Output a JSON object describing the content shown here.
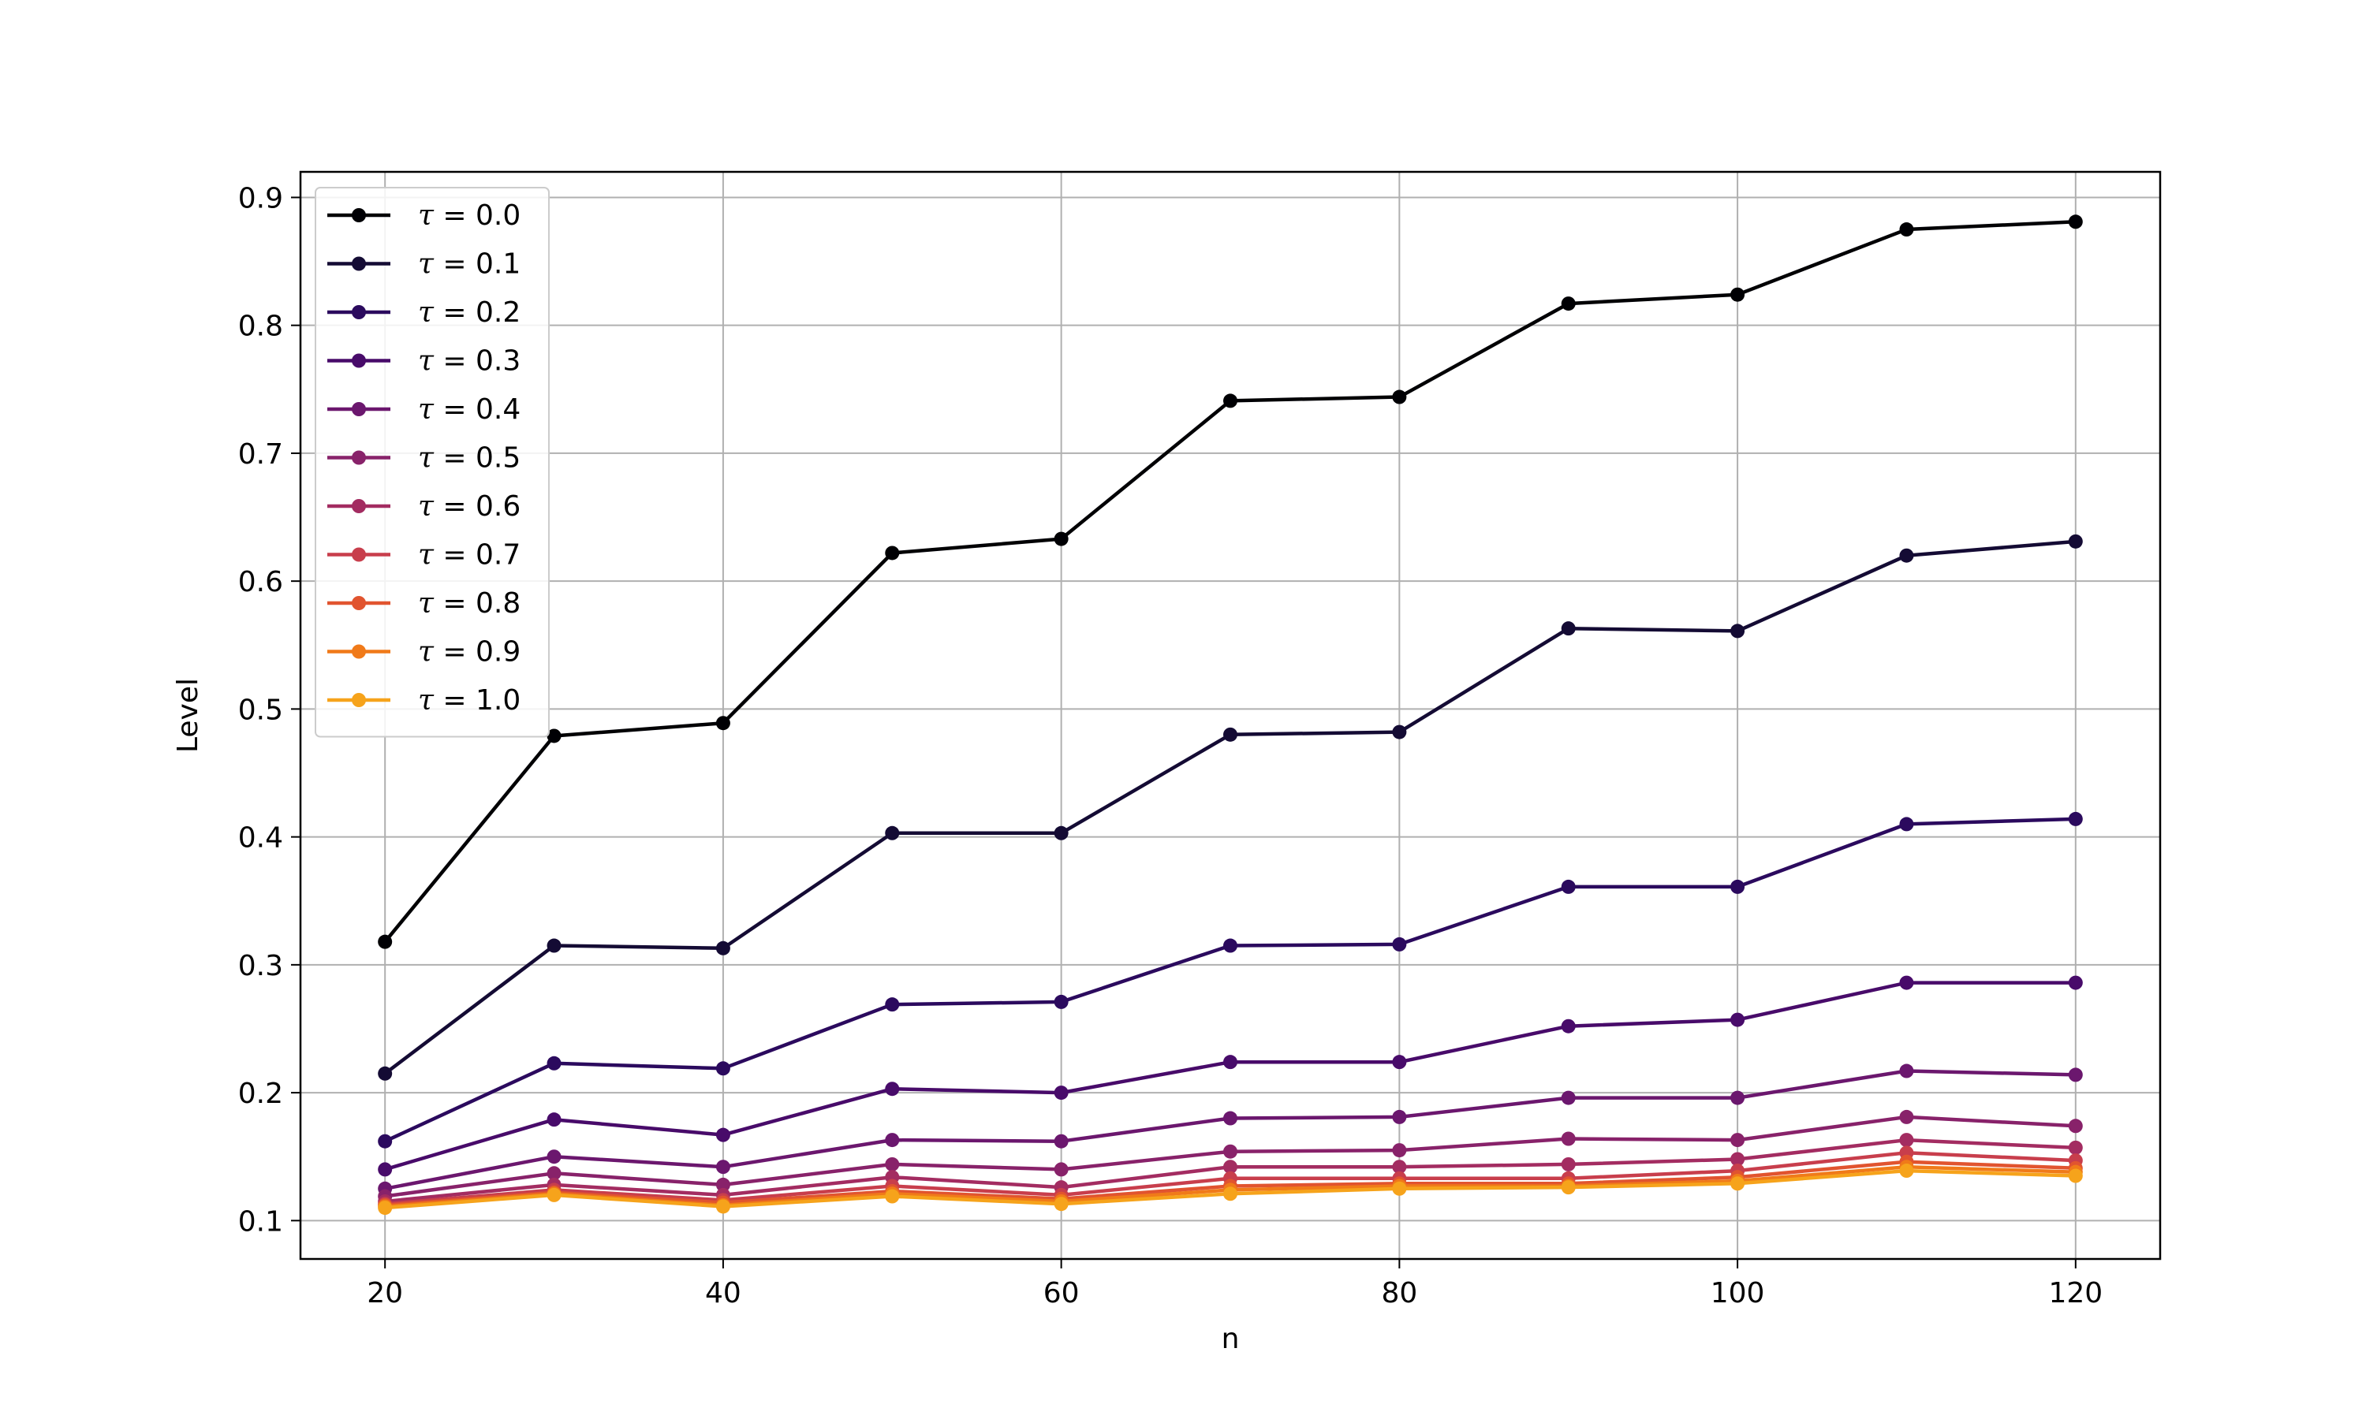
{
  "chart_data": {
    "type": "line",
    "title": "",
    "xlabel": "n",
    "ylabel": "Level",
    "xlim": [
      15,
      125
    ],
    "ylim": [
      0.07,
      0.92
    ],
    "xticks": [
      20,
      40,
      60,
      80,
      100,
      120
    ],
    "yticks": [
      0.1,
      0.2,
      0.3,
      0.4,
      0.5,
      0.6,
      0.7,
      0.8,
      0.9
    ],
    "xtick_labels": [
      "20",
      "40",
      "60",
      "80",
      "100",
      "120"
    ],
    "ytick_labels": [
      "0.1",
      "0.2",
      "0.3",
      "0.4",
      "0.5",
      "0.6",
      "0.7",
      "0.8",
      "0.9"
    ],
    "grid": true,
    "legend_position": "top-left",
    "x": [
      20,
      30,
      40,
      50,
      60,
      70,
      80,
      90,
      100,
      110,
      120
    ],
    "series": [
      {
        "name": "τ = 0.0",
        "name_symbol": "τ",
        "name_rest": " = 0.0",
        "color": "#000004",
        "values": [
          0.318,
          0.479,
          0.489,
          0.622,
          0.633,
          0.741,
          0.744,
          0.817,
          0.824,
          0.875,
          0.881
        ]
      },
      {
        "name": "τ = 0.1",
        "name_symbol": "τ",
        "name_rest": " = 0.1",
        "color": "#140b34",
        "values": [
          0.215,
          0.315,
          0.313,
          0.403,
          0.403,
          0.48,
          0.482,
          0.563,
          0.561,
          0.62,
          0.631
        ]
      },
      {
        "name": "τ = 0.2",
        "name_symbol": "τ",
        "name_rest": " = 0.2",
        "color": "#2b0a5e",
        "values": [
          0.162,
          0.223,
          0.219,
          0.269,
          0.271,
          0.315,
          0.316,
          0.361,
          0.361,
          0.41,
          0.414
        ]
      },
      {
        "name": "τ = 0.3",
        "name_symbol": "τ",
        "name_rest": " = 0.3",
        "color": "#480b6a",
        "values": [
          0.14,
          0.179,
          0.167,
          0.203,
          0.2,
          0.224,
          0.224,
          0.252,
          0.257,
          0.286,
          0.286
        ]
      },
      {
        "name": "τ = 0.4",
        "name_symbol": "τ",
        "name_rest": " = 0.4",
        "color": "#6b176e",
        "values": [
          0.125,
          0.15,
          0.142,
          0.163,
          0.162,
          0.18,
          0.181,
          0.196,
          0.196,
          0.217,
          0.214
        ]
      },
      {
        "name": "τ = 0.5",
        "name_symbol": "τ",
        "name_rest": " = 0.5",
        "color": "#88226a",
        "values": [
          0.119,
          0.137,
          0.128,
          0.144,
          0.14,
          0.154,
          0.155,
          0.164,
          0.163,
          0.181,
          0.174
        ]
      },
      {
        "name": "τ = 0.6",
        "name_symbol": "τ",
        "name_rest": " = 0.6",
        "color": "#a32c61",
        "values": [
          0.115,
          0.128,
          0.12,
          0.134,
          0.126,
          0.142,
          0.142,
          0.144,
          0.148,
          0.163,
          0.157
        ]
      },
      {
        "name": "τ = 0.7",
        "name_symbol": "τ",
        "name_rest": " = 0.7",
        "color": "#c83e4c",
        "values": [
          0.113,
          0.124,
          0.116,
          0.127,
          0.12,
          0.133,
          0.133,
          0.133,
          0.139,
          0.153,
          0.147
        ]
      },
      {
        "name": "τ = 0.8",
        "name_symbol": "τ",
        "name_rest": " = 0.8",
        "color": "#e1542f",
        "values": [
          0.112,
          0.122,
          0.114,
          0.123,
          0.117,
          0.127,
          0.129,
          0.129,
          0.134,
          0.146,
          0.141
        ]
      },
      {
        "name": "τ = 0.9",
        "name_symbol": "τ",
        "name_rest": " = 0.9",
        "color": "#f07a19",
        "values": [
          0.111,
          0.121,
          0.112,
          0.121,
          0.115,
          0.124,
          0.127,
          0.127,
          0.131,
          0.142,
          0.138
        ]
      },
      {
        "name": "τ = 1.0",
        "name_symbol": "τ",
        "name_rest": " = 1.0",
        "color": "#f6a31b",
        "values": [
          0.11,
          0.12,
          0.111,
          0.119,
          0.113,
          0.121,
          0.125,
          0.126,
          0.129,
          0.139,
          0.135
        ]
      }
    ]
  }
}
